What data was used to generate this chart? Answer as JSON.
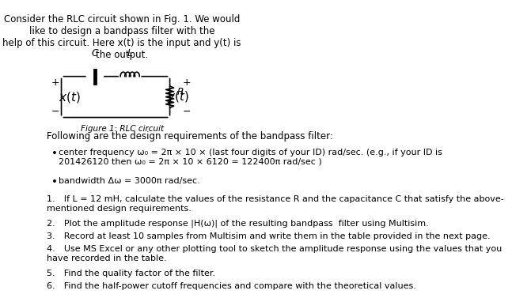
{
  "background_color": "#ffffff",
  "title_text": "Consider the RLC circuit shown in Fig. 1. We would like to design a bandpass filter with the\nhelp of this circuit. Here x(t) is the input and y(t) is the output.",
  "figure_caption": "Figure 1: RLC circuit",
  "bullet_points": [
    "center frequency ω₀ = 2π × 10 × (last four digits of your ID) rad/sec. (e.g., if your ID is\n201426120 then ω₀ = 2π × 10 × 6120 = 122400π rad/sec )",
    "bandwidth Δω = 3000π rad/sec."
  ],
  "numbered_items": [
    "If L = 12 mH, calculate the values of the resistance R and the capacitance C that satisfy the above-\nmentioned design requirements.",
    "Plot the amplitude response |H(ω)| of the resulting bandpass  filter using Multisim.",
    "Record at least 10 samples from Multisim and write them in the table provided in the next page.",
    "Use MS Excel or any other plotting tool to sketch the amplitude response using the values that you\nhave recorded in the table.",
    "Find the quality factor of the filter.",
    "Find the half-power cutoff frequencies and compare with the theoretical values."
  ],
  "section_header": "Following are the design requirements of the bandpass filter:",
  "font_size_title": 8.5,
  "font_size_body": 8.5,
  "font_size_caption": 7.5
}
